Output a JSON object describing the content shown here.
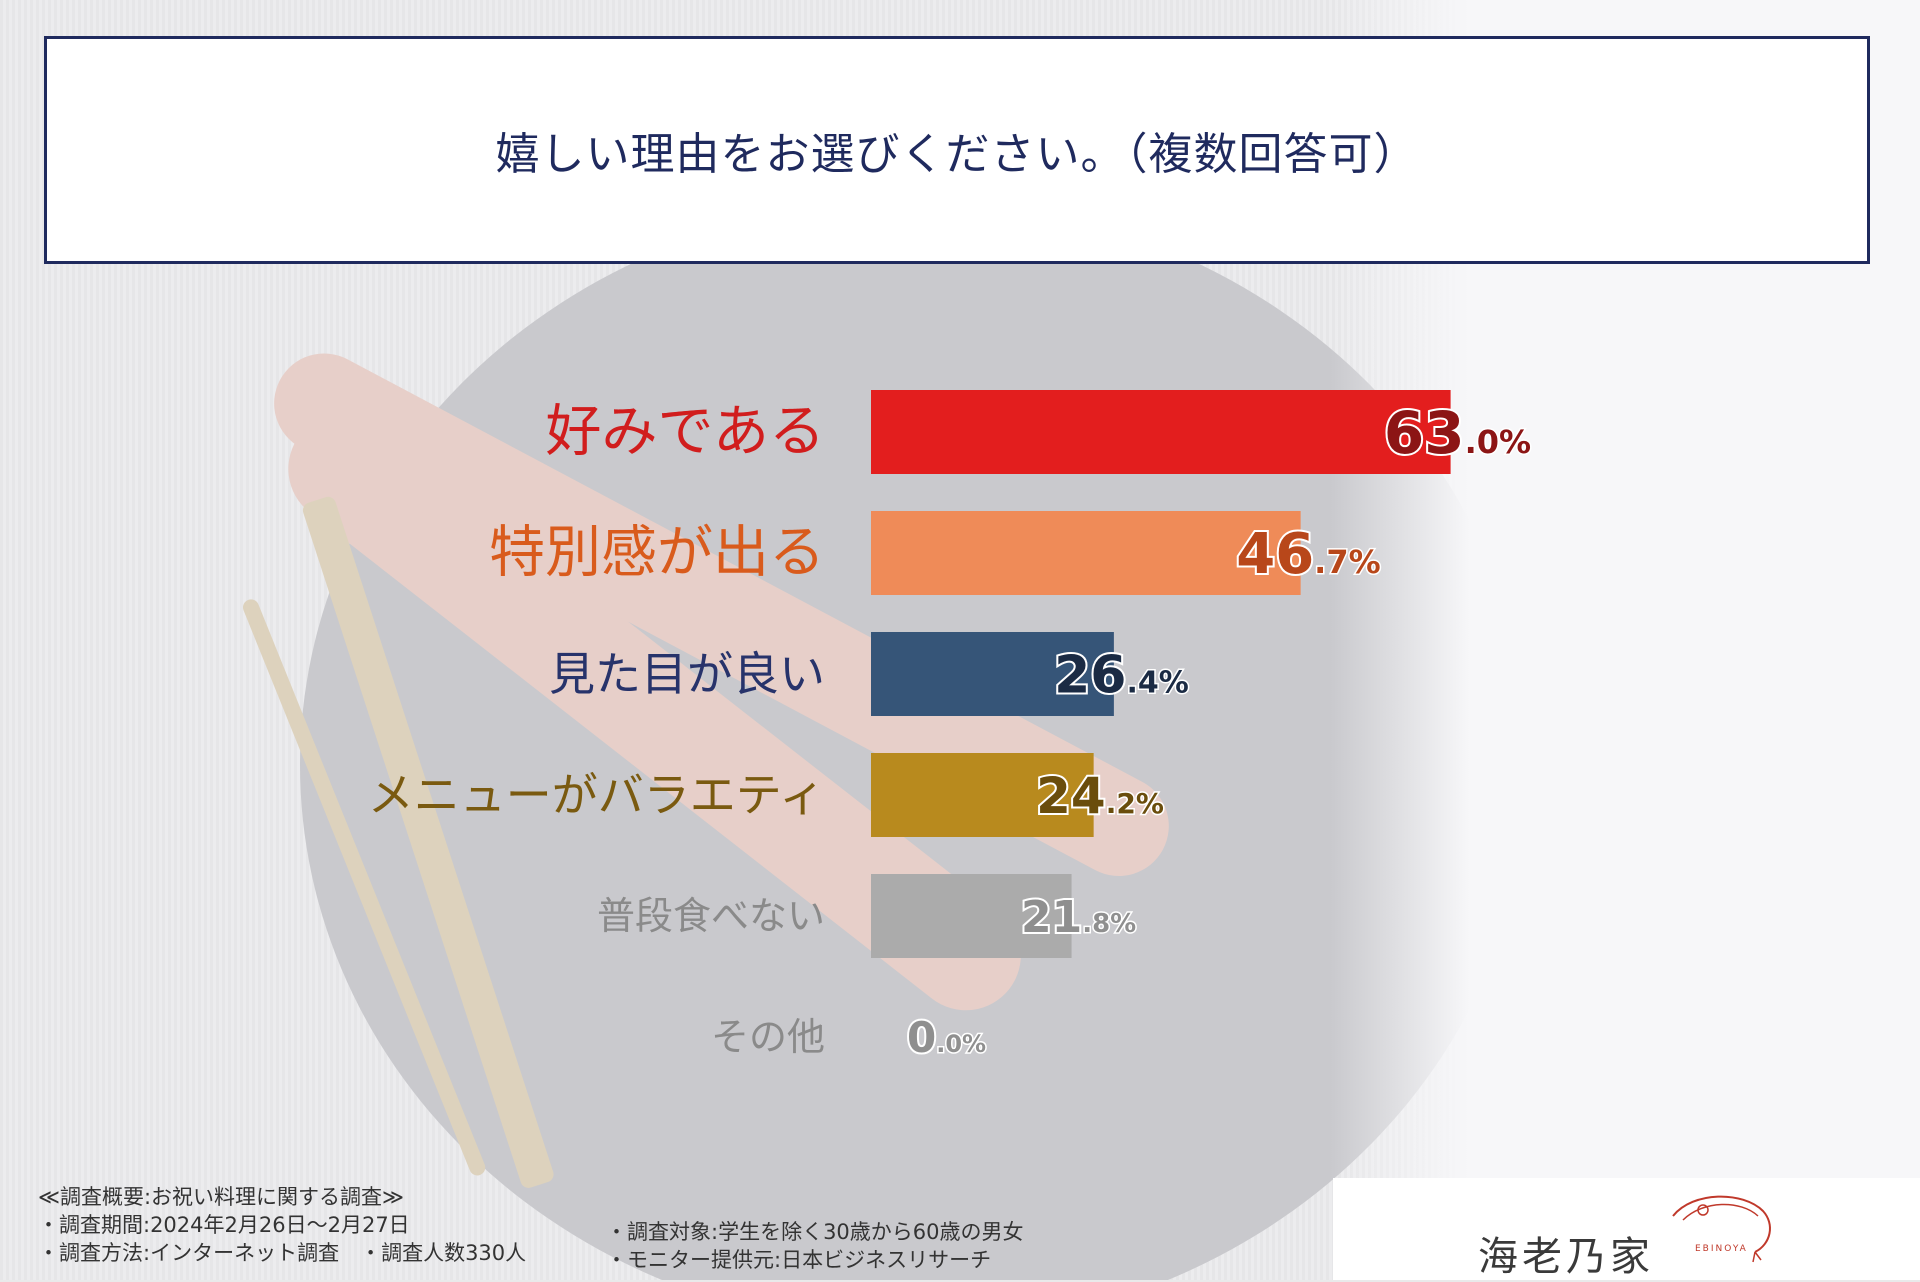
{
  "title": "嬉しい理由をお選びください。（複数回答可）",
  "chart_data": {
    "type": "bar",
    "orientation": "horizontal",
    "categories": [
      "好みである",
      "特別感が出る",
      "見た目が良い",
      "メニューがバラエティ",
      "普段食べない",
      "その他"
    ],
    "values": [
      63.0,
      46.7,
      26.4,
      24.2,
      21.8,
      0.0
    ],
    "value_labels": [
      {
        "int": "63",
        "dec": ".0%"
      },
      {
        "int": "46",
        "dec": ".7%"
      },
      {
        "int": "26",
        "dec": ".4%"
      },
      {
        "int": "24",
        "dec": ".2%"
      },
      {
        "int": "21",
        "dec": ".8%"
      },
      {
        "int": "0",
        "dec": ".0%"
      }
    ],
    "colors": [
      "#e31e1e",
      "#ef8b58",
      "#365578",
      "#b88a1e",
      "#ababab",
      "#ababab"
    ],
    "label_colors": [
      "#d11d1d",
      "#d95b1c",
      "#27336b",
      "#7a5a10",
      "#8a8a8a",
      "#8a8a8a"
    ],
    "value_colors": [
      "#8c1515",
      "#b8471a",
      "#1b2b44",
      "#6a4d0c",
      "#8f8f8f",
      "#8f8f8f"
    ],
    "xlim": [
      0,
      100
    ]
  },
  "footnotes": {
    "header": "≪調査概要:お祝い料理に関する調査≫",
    "period": "・調査期間:2024年2月26日～2月27日",
    "method": "・調査方法:インターネット調査　・調査人数330人",
    "target": "・調査対象:学生を除く30歳から60歳の男女",
    "provider": "・モニター提供元:日本ビジネスリサーチ"
  },
  "logo": {
    "brand": "海老乃家",
    "sub": "EBINOYA"
  }
}
